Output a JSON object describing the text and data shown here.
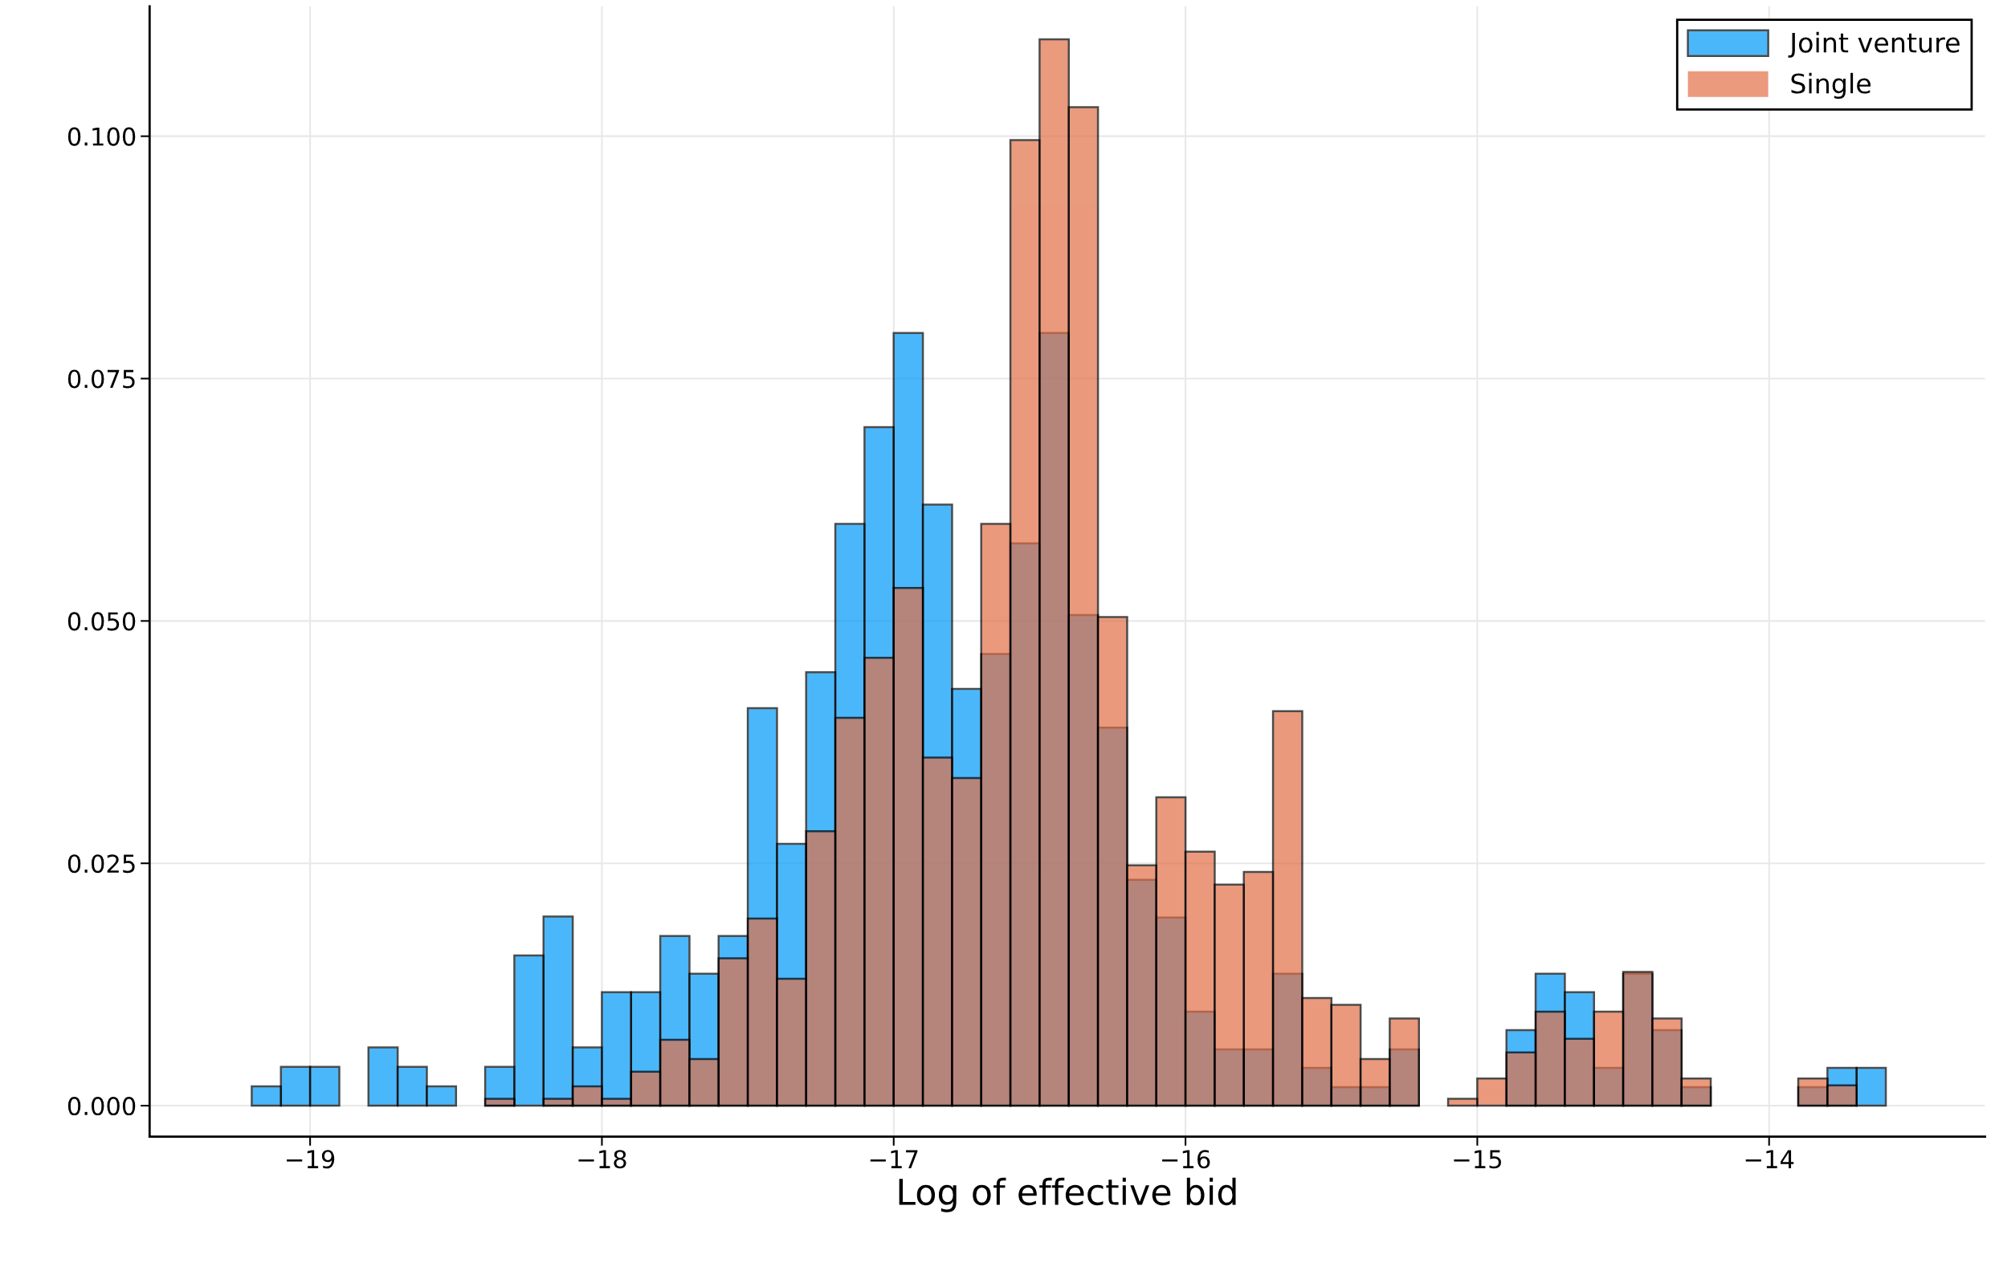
{
  "chart_data": {
    "type": "histogram",
    "xlabel": "Log of effective bid",
    "bins": [
      -19.2,
      -19.1,
      -19.0,
      -18.9,
      -18.8,
      -18.7,
      -18.6,
      -18.5,
      -18.4,
      -18.3,
      -18.2,
      -18.1,
      -18.0,
      -17.9,
      -17.8,
      -17.7,
      -17.6,
      -17.5,
      -17.4,
      -17.3,
      -17.2,
      -17.1,
      -17.0,
      -16.9,
      -16.8,
      -16.7,
      -16.6,
      -16.5,
      -16.4,
      -16.3,
      -16.2,
      -16.1,
      -16.0,
      -15.9,
      -15.8,
      -15.7,
      -15.6,
      -15.5,
      -15.4,
      -15.3,
      -15.2,
      -15.1,
      -15.0,
      -14.9,
      -14.8,
      -14.7,
      -14.6,
      -14.5,
      -14.4,
      -14.3,
      -14.2,
      -14.1,
      -14.0,
      -13.9,
      -13.8,
      -13.7,
      -13.6
    ],
    "series": [
      {
        "name": "Joint venture",
        "color": "#009afa",
        "values": [
          0.002,
          0.004,
          0.004,
          0,
          0.006,
          0.004,
          0.002,
          0,
          0.004,
          0.0155,
          0.0195,
          0.006,
          0.0117,
          0.0117,
          0.0175,
          0.0136,
          0.0175,
          0.041,
          0.027,
          0.0447,
          0.06,
          0.07,
          0.0797,
          0.062,
          0.043,
          0.0466,
          0.058,
          0.0797,
          0.0506,
          0.039,
          0.0233,
          0.0194,
          0.0097,
          0.0058,
          0.0058,
          0.0136,
          0.0039,
          0.0019,
          0.0019,
          0.0058,
          0,
          0,
          0,
          0.0078,
          0.0136,
          0.0117,
          0.0039,
          0.0136,
          0.0078,
          0.0019,
          0,
          0,
          0,
          0.0019,
          0.0039,
          0.0039
        ]
      },
      {
        "name": "Single",
        "color": "#e26f46",
        "values": [
          0,
          0,
          0,
          0,
          0,
          0,
          0,
          0,
          0.0007,
          0,
          0.0007,
          0.002,
          0.0007,
          0.0035,
          0.0068,
          0.0048,
          0.0152,
          0.0193,
          0.0131,
          0.0283,
          0.04,
          0.0462,
          0.0534,
          0.0359,
          0.0338,
          0.06,
          0.0996,
          0.11,
          0.103,
          0.0504,
          0.0248,
          0.0318,
          0.0262,
          0.0228,
          0.0241,
          0.0407,
          0.0111,
          0.0104,
          0.0048,
          0.009,
          0,
          0.0007,
          0.0028,
          0.0055,
          0.0097,
          0.0069,
          0.0097,
          0.0138,
          0.009,
          0.0028,
          0,
          0,
          0,
          0.0028,
          0.0021,
          0
        ]
      }
    ],
    "xlim": [
      -19.55,
      -13.26
    ],
    "xticks": [
      -19,
      -18,
      -17,
      -16,
      -15,
      -14
    ],
    "ylim": [
      -0.0032,
      0.1134
    ],
    "yticks": [
      {
        "value": 0,
        "label": "0.000"
      },
      {
        "value": 0.025,
        "label": "0.025"
      },
      {
        "value": 0.05,
        "label": "0.050"
      },
      {
        "value": 0.075,
        "label": "0.075"
      },
      {
        "value": 0.1,
        "label": "0.100"
      }
    ],
    "grid": true,
    "legend": "top right"
  }
}
